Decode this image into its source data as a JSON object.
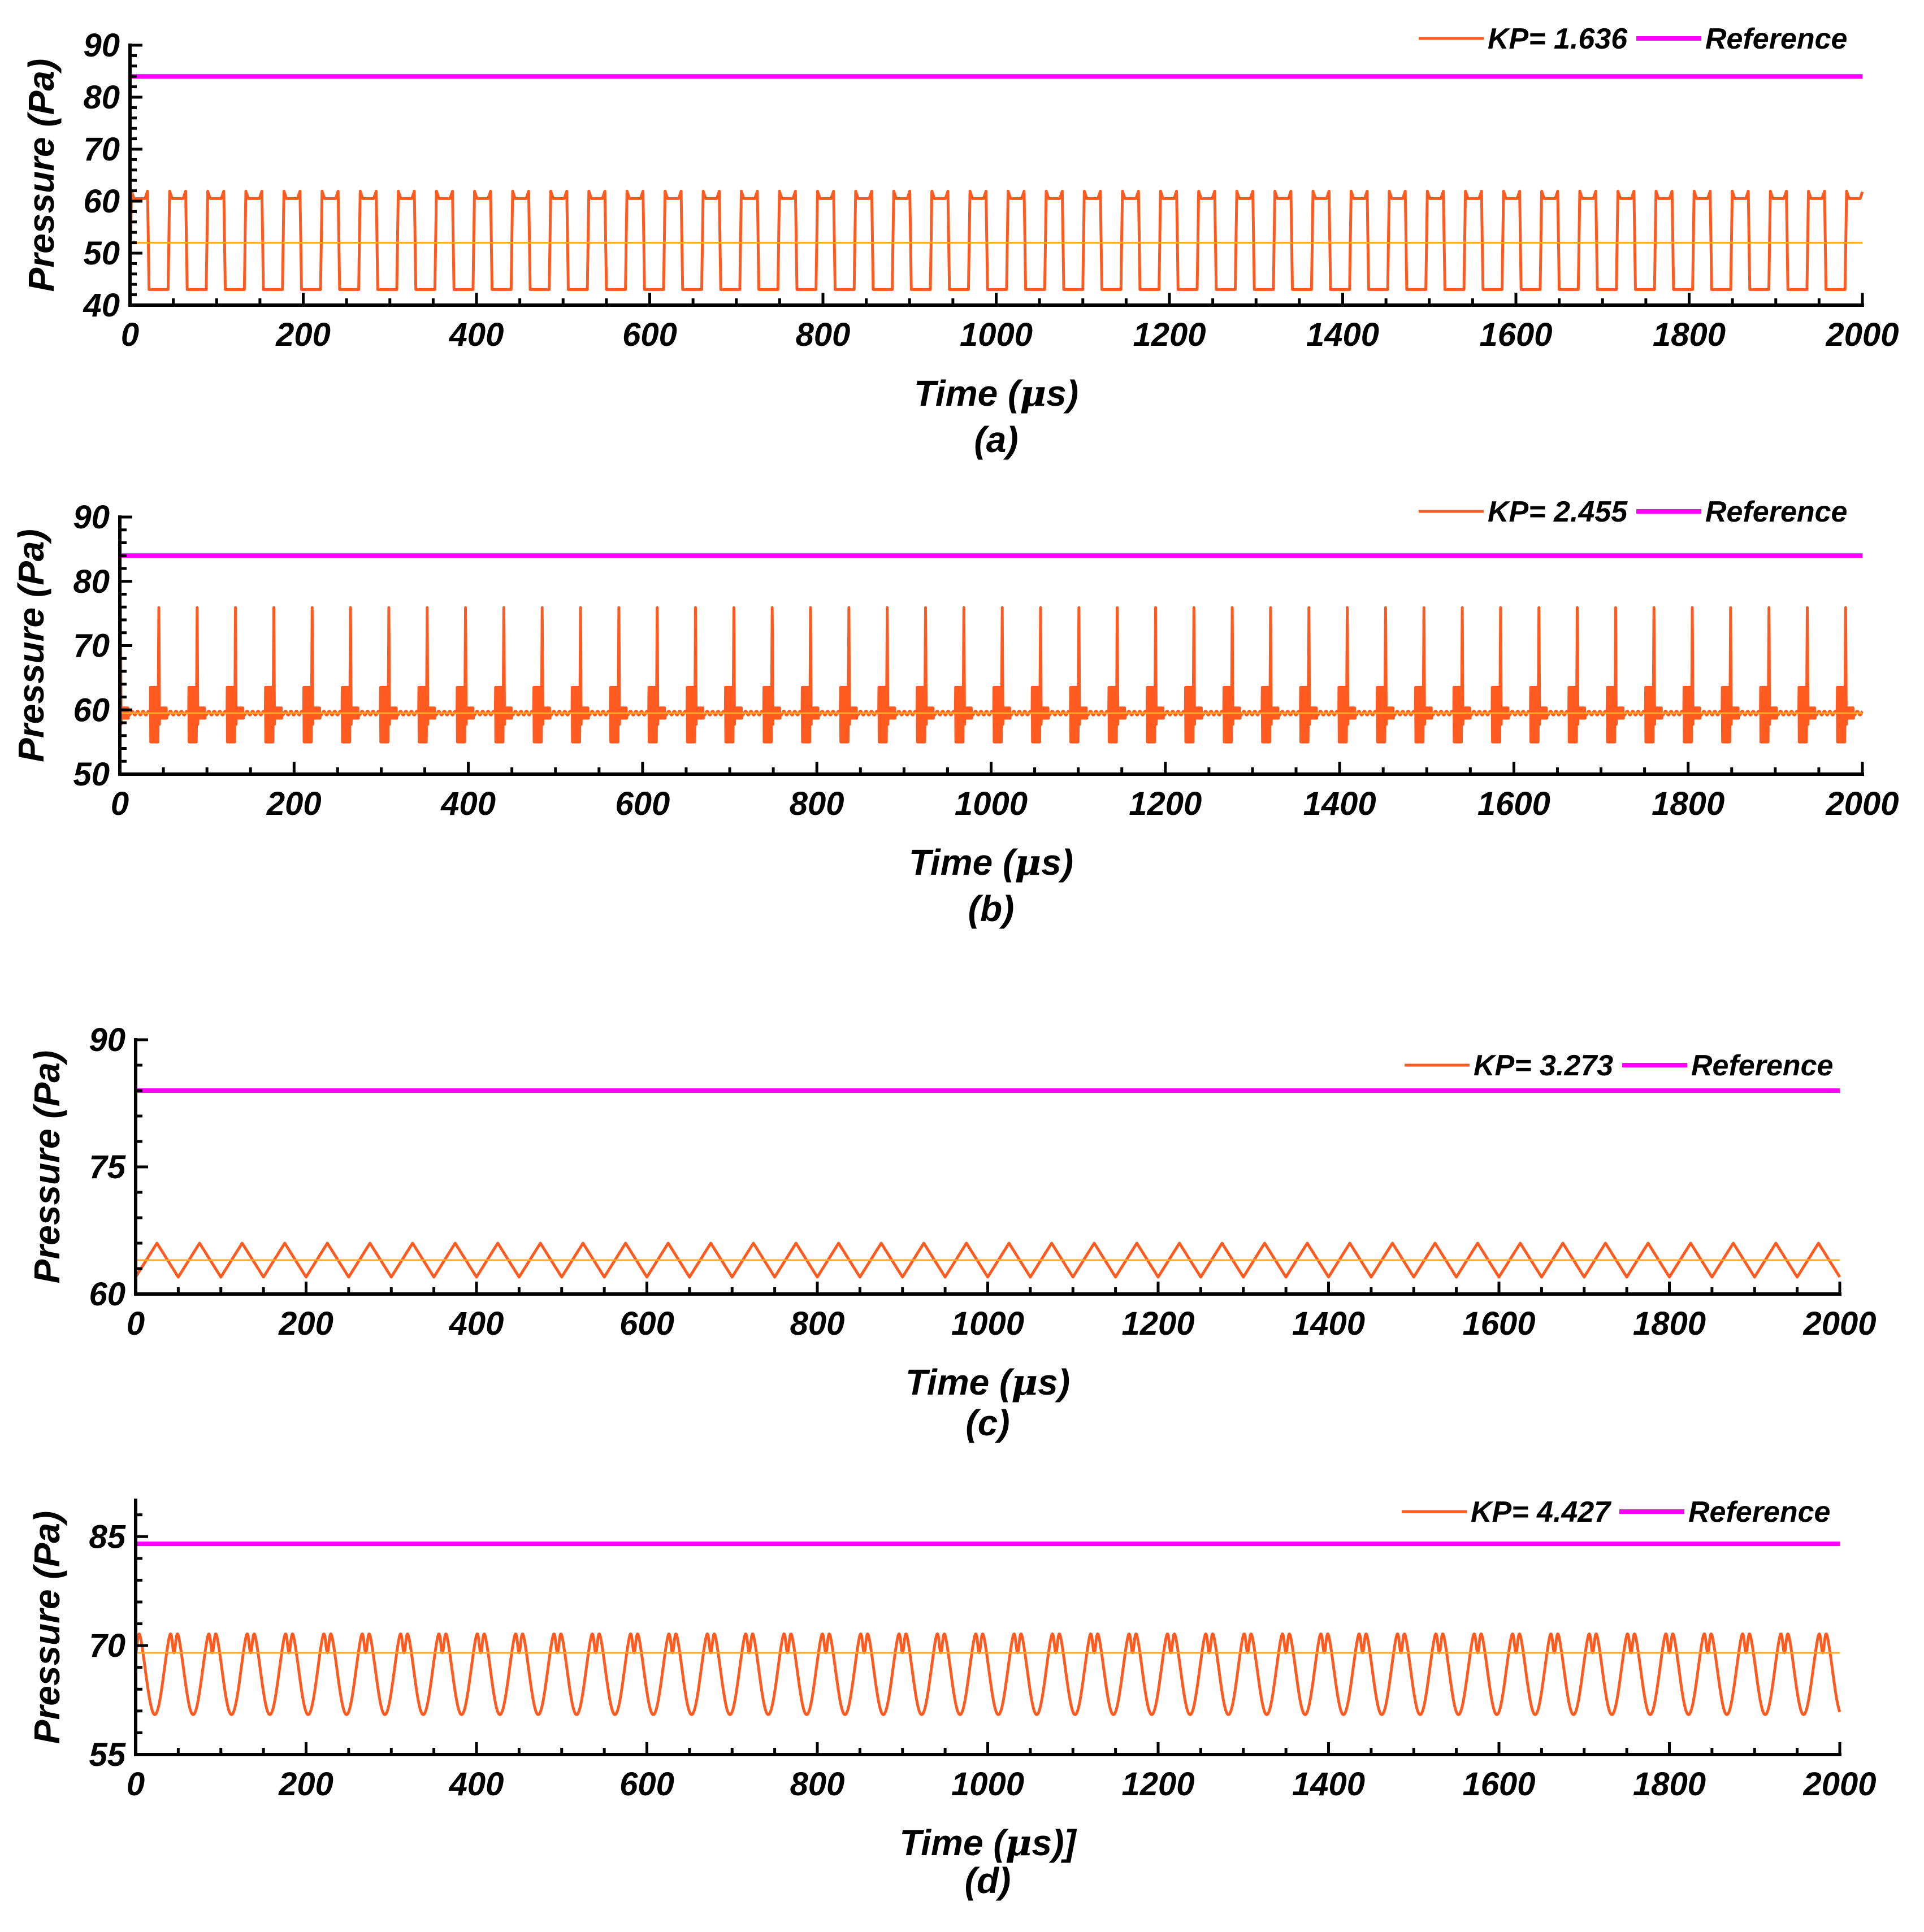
{
  "figure": {
    "colors": {
      "kp_line": "#ff5a1f",
      "mean_line": "#ffa726",
      "reference": "#ff00ff",
      "axis": "#000000"
    }
  },
  "chart_data": [
    {
      "type": "line",
      "panel_label": "(a)",
      "xlabel": "Time (μs)",
      "ylabel": "Pressure (Pa)",
      "xlim": [
        0,
        2000
      ],
      "ylim": [
        40,
        90
      ],
      "xticks": [
        0,
        200,
        400,
        600,
        800,
        1000,
        1200,
        1400,
        1600,
        1800,
        2000
      ],
      "yticks": [
        40,
        50,
        60,
        70,
        80,
        90
      ],
      "legend": [
        "KP= 1.636",
        "Reference"
      ],
      "legend_position": "top-right",
      "series": [
        {
          "name": "KP= 1.636",
          "color": "#ff5a1f",
          "waveform": "square",
          "period_us": 44,
          "min": 43,
          "max": 60.5,
          "overshoot": 1.5,
          "mean": 52
        },
        {
          "name": "Reference",
          "color": "#ff00ff",
          "constant": 84
        }
      ]
    },
    {
      "type": "line",
      "panel_label": "(b)",
      "xlabel": "Time (μs)",
      "ylabel": "Pressure (Pa)",
      "xlim": [
        0,
        2000
      ],
      "ylim": [
        50,
        90
      ],
      "xticks": [
        0,
        200,
        400,
        600,
        800,
        1000,
        1200,
        1400,
        1600,
        1800,
        2000
      ],
      "yticks": [
        50,
        60,
        70,
        80,
        90
      ],
      "legend": [
        "KP= 2.455",
        "Reference"
      ],
      "legend_position": "top-right",
      "series": [
        {
          "name": "KP= 2.455",
          "color": "#ff5a1f",
          "waveform": "spike-burst",
          "period_us": 44,
          "baseline": 59.5,
          "spike_peak": 77,
          "burst_min": 55,
          "burst_max": 63.5
        },
        {
          "name": "Reference",
          "color": "#ff00ff",
          "constant": 84
        }
      ]
    },
    {
      "type": "line",
      "panel_label": "(c)",
      "xlabel": "Time (μs)",
      "ylabel": "Pressure (Pa)",
      "xlim": [
        0,
        2000
      ],
      "ylim": [
        60,
        90
      ],
      "xticks": [
        0,
        200,
        400,
        600,
        800,
        1000,
        1200,
        1400,
        1600,
        1800,
        2000
      ],
      "yticks": [
        60,
        75,
        90
      ],
      "legend": [
        "KP= 3.273",
        "Reference"
      ],
      "legend_position": "top-right",
      "series": [
        {
          "name": "KP= 3.273",
          "color": "#ff5a1f",
          "waveform": "triangle",
          "period_us": 50,
          "min": 62,
          "max": 66,
          "mean": 64
        },
        {
          "name": "Reference",
          "color": "#ff00ff",
          "constant": 84
        }
      ]
    },
    {
      "type": "line",
      "panel_label": "(d)",
      "xlabel": "Time (μs)]",
      "ylabel": "Pressure (Pa)",
      "xlim": [
        0,
        2000
      ],
      "ylim": [
        55,
        90
      ],
      "xticks": [
        0,
        200,
        400,
        600,
        800,
        1000,
        1200,
        1400,
        1600,
        1800,
        2000
      ],
      "yticks": [
        55,
        70,
        85
      ],
      "legend": [
        "KP= 4.427",
        "Reference"
      ],
      "legend_position": "top-right",
      "series": [
        {
          "name": "KP= 4.427",
          "color": "#ff5a1f",
          "waveform": "double-peak",
          "period_us": 45,
          "min": 60.5,
          "max": 73,
          "notch": 69,
          "mean": 69
        },
        {
          "name": "Reference",
          "color": "#ff00ff",
          "constant": 84
        }
      ]
    }
  ]
}
